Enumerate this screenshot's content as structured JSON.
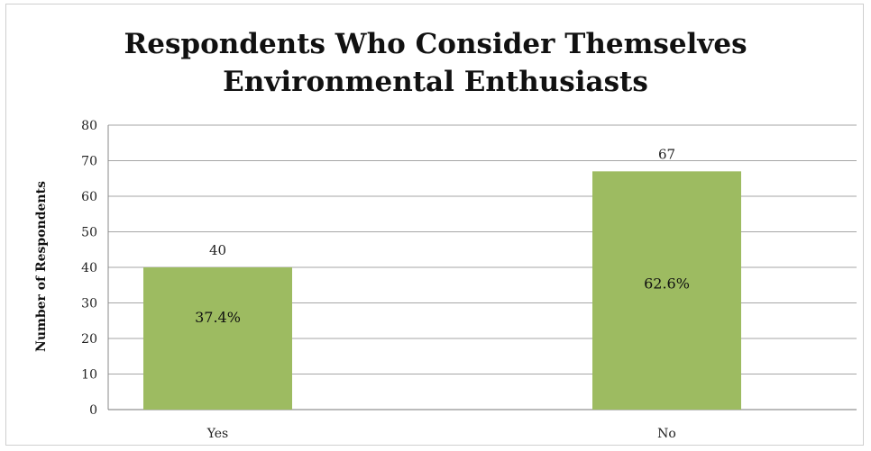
{
  "chart_data": {
    "type": "bar",
    "title_lines": [
      "Respondents Who Consider Themselves",
      "Environmental Enthusiasts"
    ],
    "ylabel": "Number of Respondents",
    "xlabel": "",
    "categories": [
      "Yes",
      "No"
    ],
    "values": [
      40,
      67
    ],
    "data_labels": [
      "40",
      "67"
    ],
    "percent_labels": [
      "37.4%",
      "62.6%"
    ],
    "ylim": [
      0,
      80
    ],
    "yticks": [
      0,
      10,
      20,
      30,
      40,
      50,
      60,
      70,
      80
    ],
    "grid": true,
    "legend": "none",
    "bar_color": "#9dbb61",
    "grid_color": "#a6a6a6"
  }
}
